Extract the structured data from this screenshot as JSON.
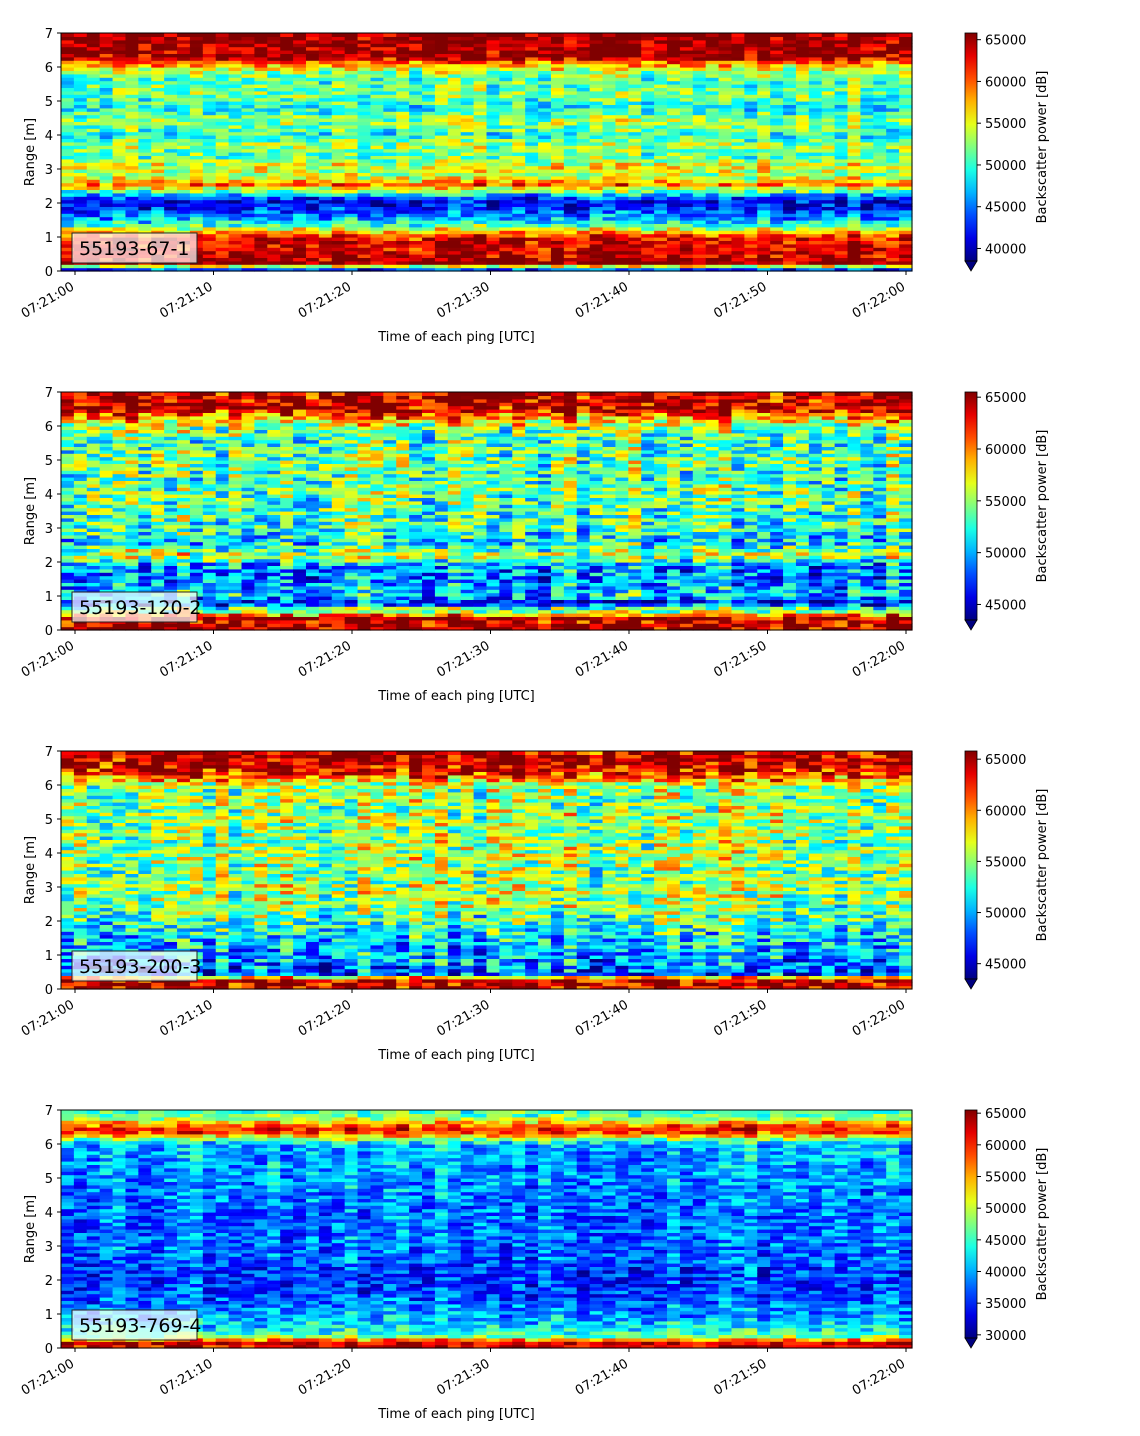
{
  "chart_data": [
    {
      "type": "heatmap",
      "label": "55193-67-1",
      "xlabel": "Time of each ping [UTC]",
      "ylabel": "Range [m]",
      "xticks": [
        "07:21:00",
        "07:21:10",
        "07:21:20",
        "07:21:30",
        "07:21:40",
        "07:21:50",
        "07:22:00"
      ],
      "yticks": [
        0,
        1,
        2,
        3,
        4,
        5,
        6,
        7
      ],
      "ylim": [
        0,
        7
      ],
      "colorbar": {
        "label": "Backscatter power [dB]",
        "min": 38500,
        "max": 65800,
        "ticks": [
          40000,
          45000,
          50000,
          55000,
          60000,
          65000
        ],
        "extend": "min"
      },
      "profile": [
        [
          0.0,
          0.0
        ],
        [
          0.25,
          1.0
        ],
        [
          0.35,
          0.95
        ],
        [
          0.6,
          0.92
        ],
        [
          0.85,
          0.92
        ],
        [
          1.0,
          0.88
        ],
        [
          1.15,
          0.72
        ],
        [
          1.35,
          0.45
        ],
        [
          1.6,
          0.28
        ],
        [
          1.9,
          0.14
        ],
        [
          2.1,
          0.1
        ],
        [
          2.3,
          0.4
        ],
        [
          2.55,
          0.78
        ],
        [
          2.8,
          0.55
        ],
        [
          3.1,
          0.62
        ],
        [
          3.4,
          0.45
        ],
        [
          3.7,
          0.55
        ],
        [
          4.0,
          0.4
        ],
        [
          4.4,
          0.55
        ],
        [
          4.8,
          0.4
        ],
        [
          5.2,
          0.5
        ],
        [
          5.6,
          0.45
        ],
        [
          5.9,
          0.55
        ],
        [
          6.1,
          0.75
        ],
        [
          6.3,
          0.97
        ],
        [
          7.0,
          1.0
        ]
      ],
      "noise": 0.14,
      "seed": 11
    },
    {
      "type": "heatmap",
      "label": "55193-120-2",
      "xlabel": "Time of each ping [UTC]",
      "ylabel": "Range [m]",
      "xticks": [
        "07:21:00",
        "07:21:10",
        "07:21:20",
        "07:21:30",
        "07:21:40",
        "07:21:50",
        "07:22:00"
      ],
      "yticks": [
        0,
        1,
        2,
        3,
        4,
        5,
        6,
        7
      ],
      "ylim": [
        0,
        7
      ],
      "colorbar": {
        "label": "Backscatter power [dB]",
        "min": 43500,
        "max": 65500,
        "ticks": [
          45000,
          50000,
          55000,
          60000,
          65000
        ],
        "extend": "min"
      },
      "profile": [
        [
          0.0,
          0.95
        ],
        [
          0.4,
          0.98
        ],
        [
          0.5,
          0.55
        ],
        [
          0.65,
          0.48
        ],
        [
          0.8,
          0.12
        ],
        [
          1.0,
          0.35
        ],
        [
          1.3,
          0.3
        ],
        [
          1.6,
          0.25
        ],
        [
          1.9,
          0.28
        ],
        [
          2.2,
          0.6
        ],
        [
          2.6,
          0.35
        ],
        [
          3.0,
          0.45
        ],
        [
          3.5,
          0.45
        ],
        [
          4.0,
          0.5
        ],
        [
          4.5,
          0.45
        ],
        [
          5.0,
          0.5
        ],
        [
          5.5,
          0.45
        ],
        [
          5.9,
          0.5
        ],
        [
          6.2,
          0.7
        ],
        [
          6.5,
          0.95
        ],
        [
          7.0,
          0.95
        ]
      ],
      "noise": 0.2,
      "seed": 23
    },
    {
      "type": "heatmap",
      "label": "55193-200-3",
      "xlabel": "Time of each ping [UTC]",
      "ylabel": "Range [m]",
      "xticks": [
        "07:21:00",
        "07:21:10",
        "07:21:20",
        "07:21:30",
        "07:21:40",
        "07:21:50",
        "07:22:00"
      ],
      "yticks": [
        0,
        1,
        2,
        3,
        4,
        5,
        6,
        7
      ],
      "ylim": [
        0,
        7
      ],
      "colorbar": {
        "label": "Backscatter power [dB]",
        "min": 43500,
        "max": 65800,
        "ticks": [
          45000,
          50000,
          55000,
          60000,
          65000
        ],
        "extend": "min"
      },
      "profile": [
        [
          0.0,
          0.95
        ],
        [
          0.3,
          0.95
        ],
        [
          0.45,
          0.2
        ],
        [
          0.7,
          0.25
        ],
        [
          1.0,
          0.3
        ],
        [
          1.5,
          0.35
        ],
        [
          2.0,
          0.45
        ],
        [
          2.5,
          0.52
        ],
        [
          3.0,
          0.55
        ],
        [
          3.5,
          0.52
        ],
        [
          4.0,
          0.55
        ],
        [
          4.5,
          0.52
        ],
        [
          5.0,
          0.55
        ],
        [
          5.5,
          0.52
        ],
        [
          6.0,
          0.55
        ],
        [
          6.3,
          0.85
        ],
        [
          6.7,
          0.97
        ],
        [
          7.0,
          0.95
        ]
      ],
      "noise": 0.2,
      "seed": 37
    },
    {
      "type": "heatmap",
      "label": "55193-769-4",
      "xlabel": "Time of each ping [UTC]",
      "ylabel": "Range [m]",
      "xticks": [
        "07:21:00",
        "07:21:10",
        "07:21:20",
        "07:21:30",
        "07:21:40",
        "07:21:50",
        "07:22:00"
      ],
      "yticks": [
        0,
        1,
        2,
        3,
        4,
        5,
        6,
        7
      ],
      "ylim": [
        0,
        7
      ],
      "colorbar": {
        "label": "Backscatter power [dB]",
        "min": 29500,
        "max": 65500,
        "ticks": [
          30000,
          35000,
          40000,
          45000,
          50000,
          55000,
          60000,
          65000
        ],
        "extend": "min"
      },
      "profile": [
        [
          0.0,
          0.9
        ],
        [
          0.2,
          0.95
        ],
        [
          0.3,
          0.55
        ],
        [
          0.5,
          0.4
        ],
        [
          1.0,
          0.3
        ],
        [
          1.5,
          0.22
        ],
        [
          2.0,
          0.18
        ],
        [
          2.5,
          0.22
        ],
        [
          3.0,
          0.25
        ],
        [
          4.0,
          0.25
        ],
        [
          5.0,
          0.28
        ],
        [
          6.0,
          0.32
        ],
        [
          6.2,
          0.6
        ],
        [
          6.4,
          0.92
        ],
        [
          6.6,
          0.75
        ],
        [
          6.8,
          0.5
        ],
        [
          7.0,
          0.45
        ]
      ],
      "noise": 0.13,
      "seed": 53
    }
  ]
}
